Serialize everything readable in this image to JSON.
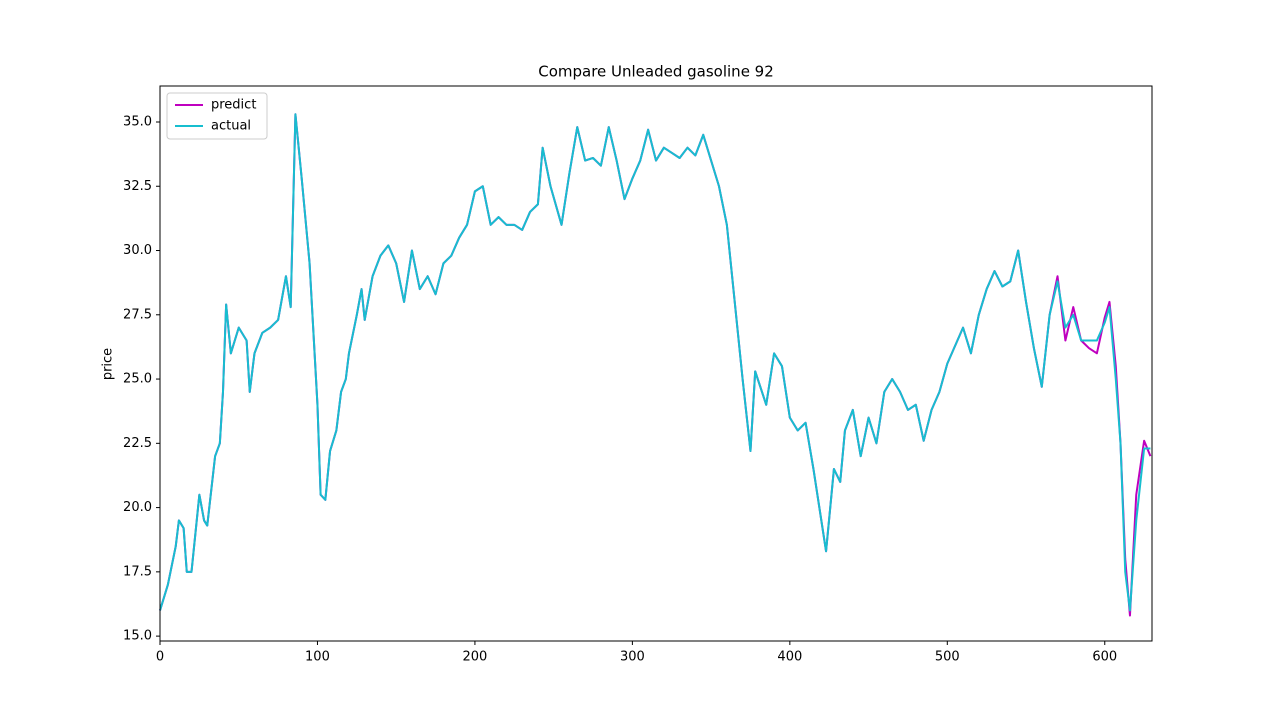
{
  "chart_data": {
    "type": "line",
    "title": "Compare Unleaded gasoline 92",
    "ylabel": "price",
    "x": [
      0,
      5,
      10,
      12,
      15,
      17,
      20,
      25,
      28,
      30,
      35,
      38,
      40,
      42,
      45,
      50,
      55,
      57,
      60,
      65,
      70,
      75,
      80,
      83,
      86,
      90,
      95,
      100,
      102,
      105,
      108,
      112,
      115,
      118,
      120,
      125,
      128,
      130,
      135,
      140,
      145,
      150,
      155,
      160,
      165,
      170,
      175,
      180,
      185,
      190,
      195,
      200,
      205,
      210,
      215,
      220,
      225,
      230,
      235,
      240,
      243,
      248,
      255,
      260,
      265,
      270,
      275,
      280,
      285,
      290,
      295,
      300,
      305,
      310,
      315,
      320,
      325,
      330,
      335,
      340,
      345,
      350,
      355,
      360,
      365,
      370,
      375,
      378,
      385,
      390,
      395,
      400,
      405,
      410,
      415,
      420,
      423,
      428,
      432,
      435,
      440,
      445,
      450,
      455,
      460,
      465,
      470,
      475,
      480,
      485,
      490,
      495,
      500,
      505,
      510,
      515,
      520,
      525,
      530,
      535,
      540,
      545,
      550,
      555,
      560,
      565,
      570,
      575,
      580,
      585,
      590,
      595,
      600,
      603,
      607,
      610,
      613,
      616,
      620,
      625,
      629
    ],
    "series": [
      {
        "name": "predict",
        "color": "#bf00bf",
        "values": [
          16.0,
          17.0,
          18.5,
          19.5,
          19.2,
          17.5,
          17.5,
          20.5,
          19.5,
          19.3,
          22.0,
          22.5,
          24.5,
          27.9,
          26.0,
          27.0,
          26.5,
          24.5,
          26.0,
          26.8,
          27.0,
          27.3,
          29.0,
          27.8,
          35.3,
          32.8,
          29.5,
          24.0,
          20.5,
          20.3,
          22.2,
          23.0,
          24.5,
          25.0,
          26.0,
          27.5,
          28.5,
          27.3,
          29.0,
          29.8,
          30.2,
          29.5,
          28.0,
          30.0,
          28.5,
          29.0,
          28.3,
          29.5,
          29.8,
          30.5,
          31.0,
          32.3,
          32.5,
          31.0,
          31.3,
          31.0,
          31.0,
          30.8,
          31.5,
          31.8,
          34.0,
          32.5,
          31.0,
          33.0,
          34.8,
          33.5,
          33.6,
          33.3,
          34.8,
          33.5,
          32.0,
          32.8,
          33.5,
          34.7,
          33.5,
          34.0,
          33.8,
          33.6,
          34.0,
          33.7,
          34.5,
          33.5,
          32.5,
          31.0,
          28.0,
          25.0,
          22.2,
          25.3,
          24.0,
          26.0,
          25.5,
          23.5,
          23.0,
          23.3,
          21.5,
          19.5,
          18.3,
          21.5,
          21.0,
          23.0,
          23.8,
          22.0,
          23.5,
          22.5,
          24.5,
          25.0,
          24.5,
          23.8,
          24.0,
          22.6,
          23.8,
          24.5,
          25.6,
          26.3,
          27.0,
          26.0,
          27.5,
          28.5,
          29.2,
          28.6,
          28.8,
          30.0,
          28.0,
          26.2,
          24.7,
          27.5,
          29.0,
          26.5,
          27.8,
          26.5,
          26.2,
          26.0,
          27.4,
          28.0,
          25.5,
          22.5,
          18.0,
          15.8,
          20.5,
          22.6,
          22.0
        ]
      },
      {
        "name": "actual",
        "color": "#17becf",
        "values": [
          16.0,
          17.0,
          18.5,
          19.5,
          19.2,
          17.5,
          17.5,
          20.5,
          19.5,
          19.3,
          22.0,
          22.5,
          24.5,
          27.9,
          26.0,
          27.0,
          26.5,
          24.5,
          26.0,
          26.8,
          27.0,
          27.3,
          29.0,
          27.8,
          35.3,
          32.8,
          29.5,
          24.0,
          20.5,
          20.3,
          22.2,
          23.0,
          24.5,
          25.0,
          26.0,
          27.5,
          28.5,
          27.3,
          29.0,
          29.8,
          30.2,
          29.5,
          28.0,
          30.0,
          28.5,
          29.0,
          28.3,
          29.5,
          29.8,
          30.5,
          31.0,
          32.3,
          32.5,
          31.0,
          31.3,
          31.0,
          31.0,
          30.8,
          31.5,
          31.8,
          34.0,
          32.5,
          31.0,
          33.0,
          34.8,
          33.5,
          33.6,
          33.3,
          34.8,
          33.5,
          32.0,
          32.8,
          33.5,
          34.7,
          33.5,
          34.0,
          33.8,
          33.6,
          34.0,
          33.7,
          34.5,
          33.5,
          32.5,
          31.0,
          28.0,
          25.0,
          22.2,
          25.3,
          24.0,
          26.0,
          25.5,
          23.5,
          23.0,
          23.3,
          21.5,
          19.5,
          18.3,
          21.5,
          21.0,
          23.0,
          23.8,
          22.0,
          23.5,
          22.5,
          24.5,
          25.0,
          24.5,
          23.8,
          24.0,
          22.6,
          23.8,
          24.5,
          25.6,
          26.3,
          27.0,
          26.0,
          27.5,
          28.5,
          29.2,
          28.6,
          28.8,
          30.0,
          28.0,
          26.2,
          24.7,
          27.5,
          28.8,
          27.0,
          27.5,
          26.5,
          26.5,
          26.5,
          27.2,
          27.8,
          25.0,
          22.5,
          17.5,
          16.0,
          19.5,
          22.3,
          22.3
        ]
      }
    ],
    "xlim": [
      0,
      630
    ],
    "xticks": [
      0,
      100,
      200,
      300,
      400,
      500,
      600
    ],
    "ylim": [
      14.81,
      36.4
    ],
    "yticks": [
      {
        "value": 15,
        "label": "15.0"
      },
      17.5,
      {
        "value": 20,
        "label": "20.0"
      },
      22.5,
      {
        "value": 25,
        "label": "25.0"
      },
      27.5,
      {
        "value": 30,
        "label": "30.0"
      },
      32.5,
      {
        "value": 35,
        "label": "35.0"
      }
    ],
    "legend": "upper left"
  }
}
